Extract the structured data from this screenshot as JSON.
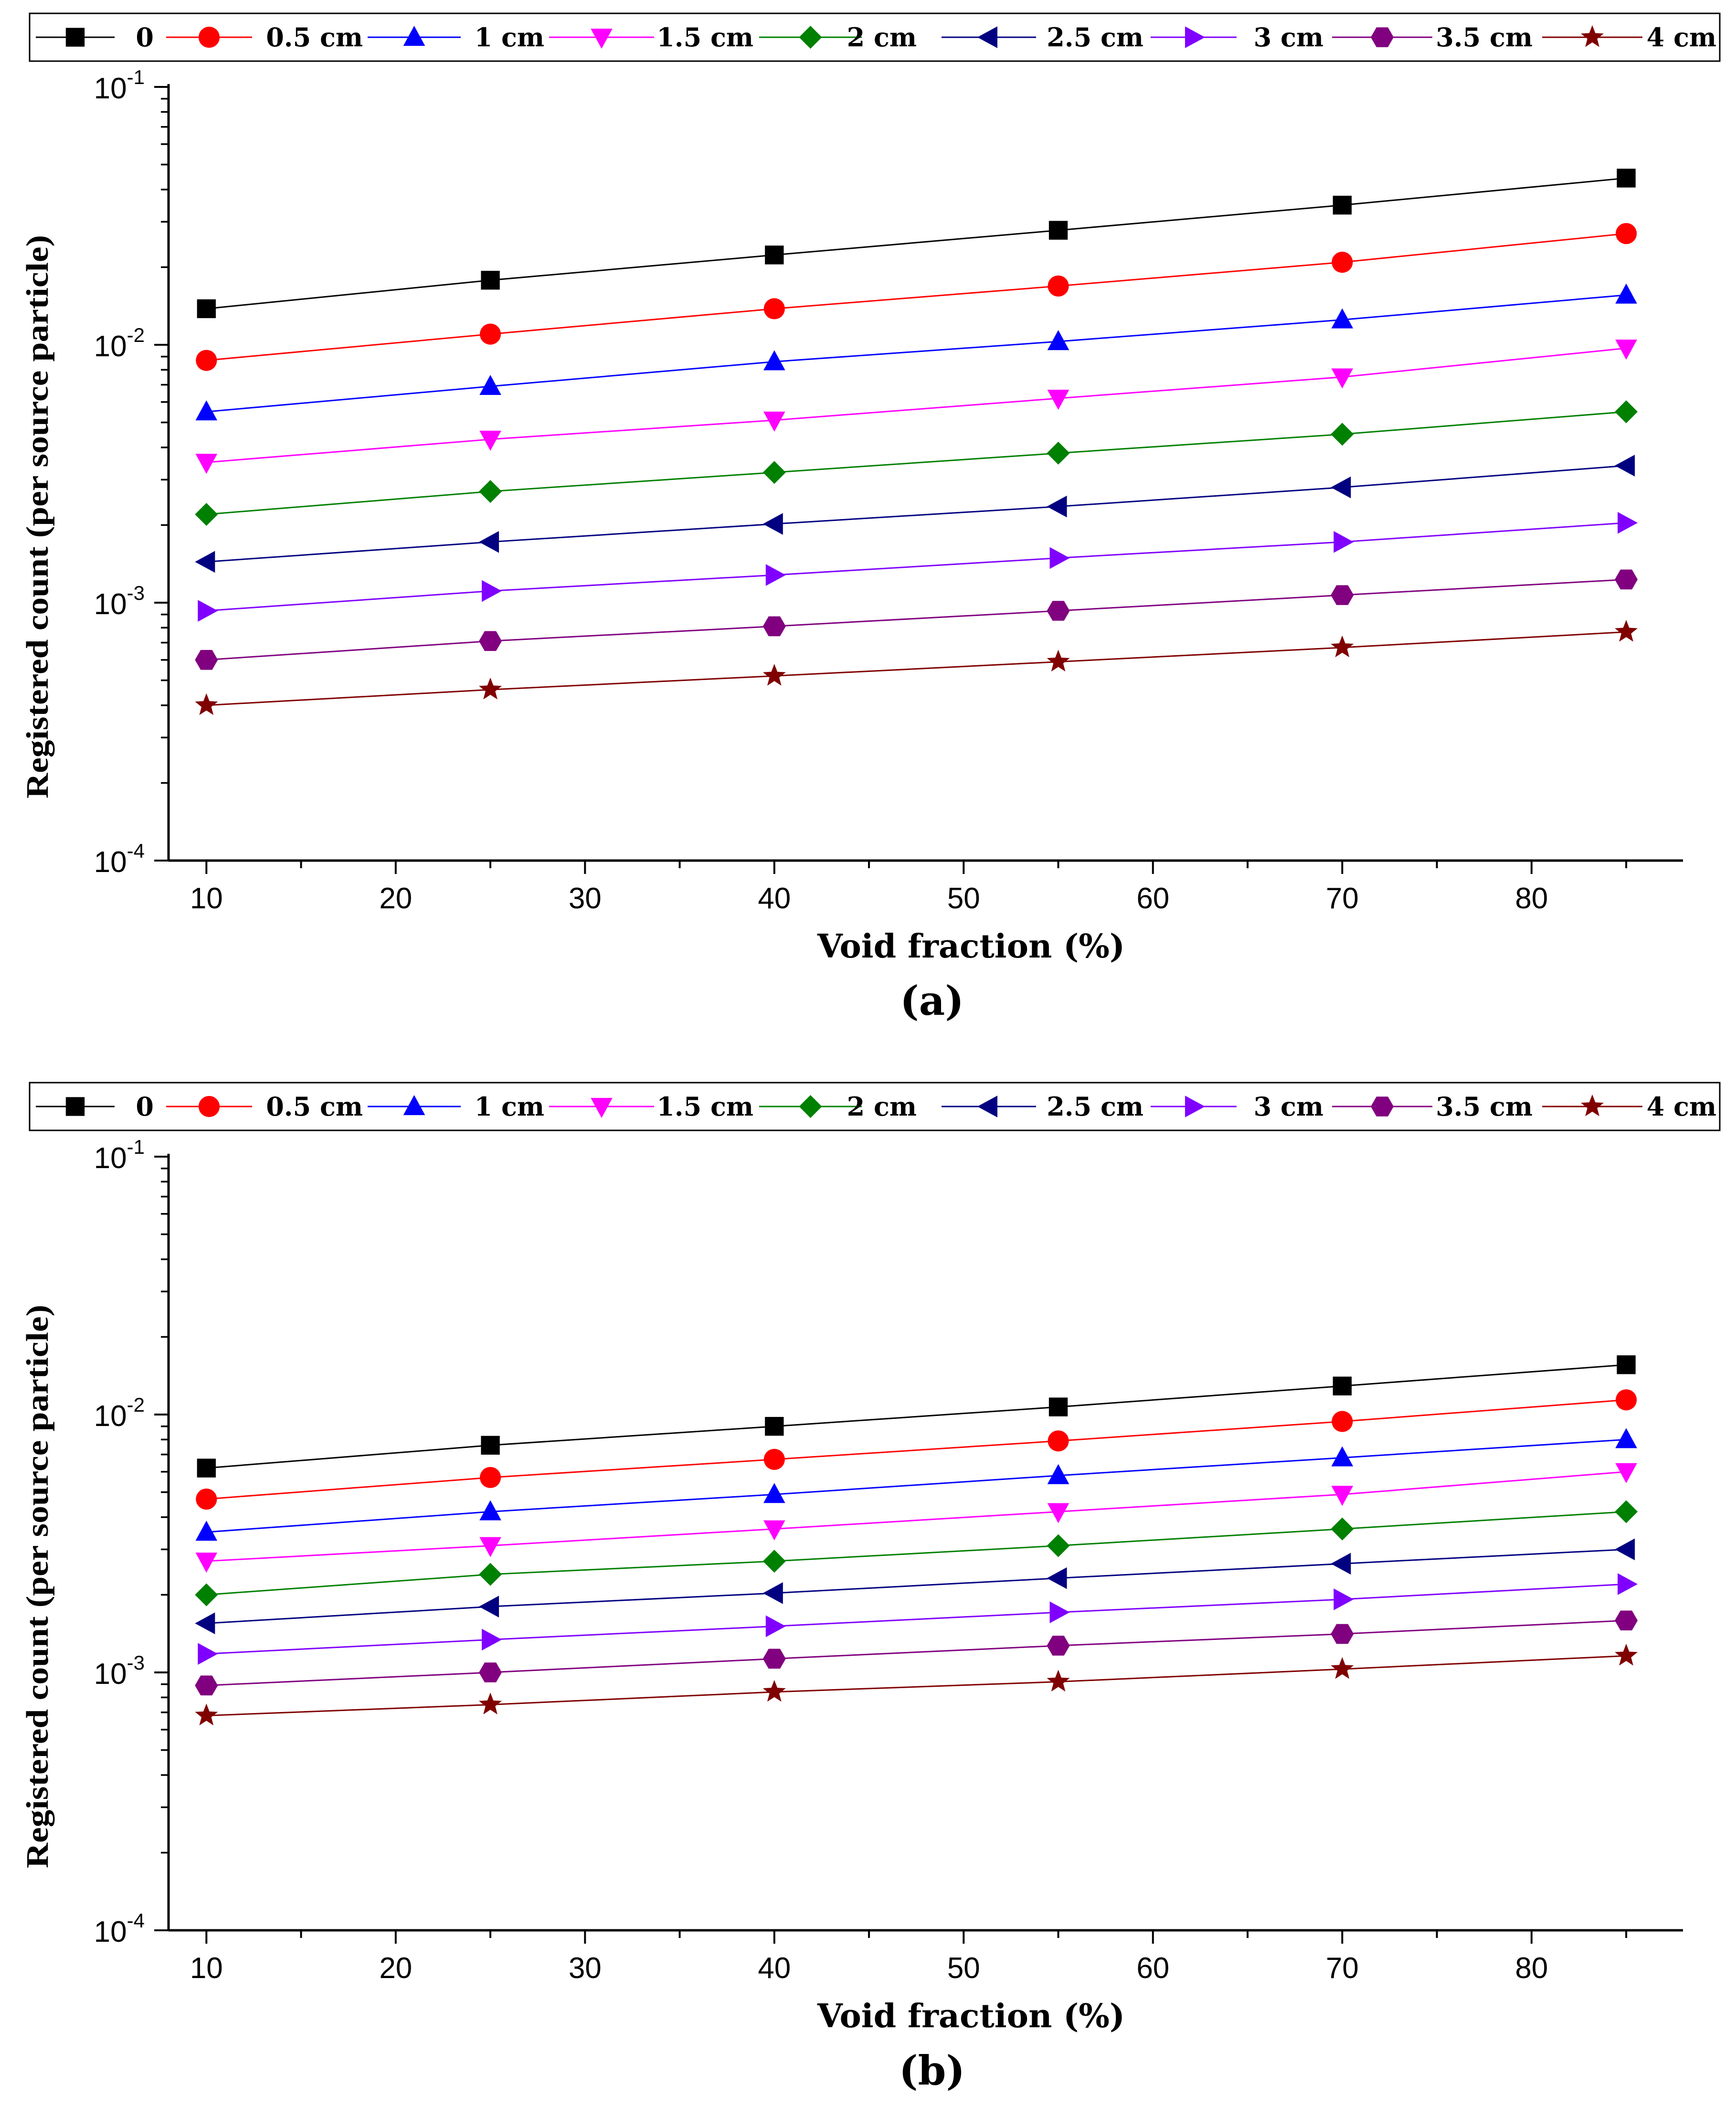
{
  "chart_data": [
    {
      "type": "line",
      "panel_label": "(a)",
      "xlabel": "Void fraction (%)",
      "ylabel": "Registered count (per source particle)",
      "yscale": "log",
      "xlim": [
        8,
        88
      ],
      "ylim": [
        0.0001,
        0.1
      ],
      "x_ticks": [
        10,
        20,
        30,
        40,
        50,
        60,
        70,
        80
      ],
      "y_ticks": [
        {
          "base": "10",
          "exp": "-1"
        },
        {
          "base": "10",
          "exp": "-2"
        },
        {
          "base": "10",
          "exp": "-3"
        },
        {
          "base": "10",
          "exp": "-4"
        }
      ],
      "legend_position": "top",
      "x": [
        10,
        25,
        40,
        55,
        70,
        85
      ],
      "series": [
        {
          "name": "0",
          "color": "#000000",
          "marker": "square",
          "values": [
            0.0138,
            0.0178,
            0.0223,
            0.0278,
            0.0348,
            0.0443
          ]
        },
        {
          "name": "0.5 cm",
          "color": "#ff0000",
          "marker": "circle",
          "values": [
            0.0087,
            0.011,
            0.0138,
            0.0169,
            0.0209,
            0.027
          ]
        },
        {
          "name": "1 cm",
          "color": "#0000ff",
          "marker": "triangle-up",
          "values": [
            0.0055,
            0.0069,
            0.0086,
            0.0103,
            0.0125,
            0.0156
          ]
        },
        {
          "name": "1.5 cm",
          "color": "#ff00ff",
          "marker": "triangle-down",
          "values": [
            0.0035,
            0.0043,
            0.0051,
            0.0062,
            0.0075,
            0.0097
          ]
        },
        {
          "name": "2 cm",
          "color": "#008000",
          "marker": "diamond",
          "values": [
            0.0022,
            0.0027,
            0.0032,
            0.0038,
            0.0045,
            0.0055
          ]
        },
        {
          "name": "2.5 cm",
          "color": "#000080",
          "marker": "triangle-left",
          "values": [
            0.00144,
            0.00172,
            0.00202,
            0.00236,
            0.0028,
            0.0034
          ]
        },
        {
          "name": "3 cm",
          "color": "#8000ff",
          "marker": "triangle-right",
          "values": [
            0.00093,
            0.00111,
            0.00128,
            0.00149,
            0.00172,
            0.00204
          ]
        },
        {
          "name": "3.5 cm",
          "color": "#800080",
          "marker": "hexagon",
          "values": [
            0.0006,
            0.00071,
            0.00081,
            0.00093,
            0.00107,
            0.00123
          ]
        },
        {
          "name": "4 cm",
          "color": "#800000",
          "marker": "star",
          "values": [
            0.0004,
            0.00046,
            0.00052,
            0.00059,
            0.00067,
            0.00077
          ]
        }
      ]
    },
    {
      "type": "line",
      "panel_label": "(b)",
      "xlabel": "Void fraction (%)",
      "ylabel": "Registered count (per source particle)",
      "yscale": "log",
      "xlim": [
        8,
        88
      ],
      "ylim": [
        0.0001,
        0.1
      ],
      "x_ticks": [
        10,
        20,
        30,
        40,
        50,
        60,
        70,
        80
      ],
      "y_ticks": [
        {
          "base": "10",
          "exp": "-1"
        },
        {
          "base": "10",
          "exp": "-2"
        },
        {
          "base": "10",
          "exp": "-3"
        },
        {
          "base": "10",
          "exp": "-4"
        }
      ],
      "legend_position": "top",
      "x": [
        10,
        25,
        40,
        55,
        70,
        85
      ],
      "series": [
        {
          "name": "0",
          "color": "#000000",
          "marker": "square",
          "values": [
            0.0062,
            0.0076,
            0.009,
            0.0107,
            0.0129,
            0.0156
          ]
        },
        {
          "name": "0.5 cm",
          "color": "#ff0000",
          "marker": "circle",
          "values": [
            0.0047,
            0.0057,
            0.0067,
            0.0079,
            0.0094,
            0.0114
          ]
        },
        {
          "name": "1 cm",
          "color": "#0000ff",
          "marker": "triangle-up",
          "values": [
            0.0035,
            0.0042,
            0.0049,
            0.0058,
            0.0068,
            0.008
          ]
        },
        {
          "name": "1.5 cm",
          "color": "#ff00ff",
          "marker": "triangle-down",
          "values": [
            0.0027,
            0.0031,
            0.0036,
            0.0042,
            0.0049,
            0.006
          ]
        },
        {
          "name": "2 cm",
          "color": "#008000",
          "marker": "diamond",
          "values": [
            0.002,
            0.0024,
            0.0027,
            0.0031,
            0.0036,
            0.0042
          ]
        },
        {
          "name": "2.5 cm",
          "color": "#000080",
          "marker": "triangle-left",
          "values": [
            0.00155,
            0.0018,
            0.00203,
            0.00232,
            0.00264,
            0.003
          ]
        },
        {
          "name": "3 cm",
          "color": "#8000ff",
          "marker": "triangle-right",
          "values": [
            0.00118,
            0.00134,
            0.00151,
            0.00171,
            0.00192,
            0.0022
          ]
        },
        {
          "name": "3.5 cm",
          "color": "#800080",
          "marker": "hexagon",
          "values": [
            0.00089,
            0.001,
            0.00113,
            0.00127,
            0.00141,
            0.00159
          ]
        },
        {
          "name": "4 cm",
          "color": "#800000",
          "marker": "star",
          "values": [
            0.00068,
            0.00075,
            0.00084,
            0.00092,
            0.00103,
            0.00116
          ]
        }
      ]
    }
  ]
}
